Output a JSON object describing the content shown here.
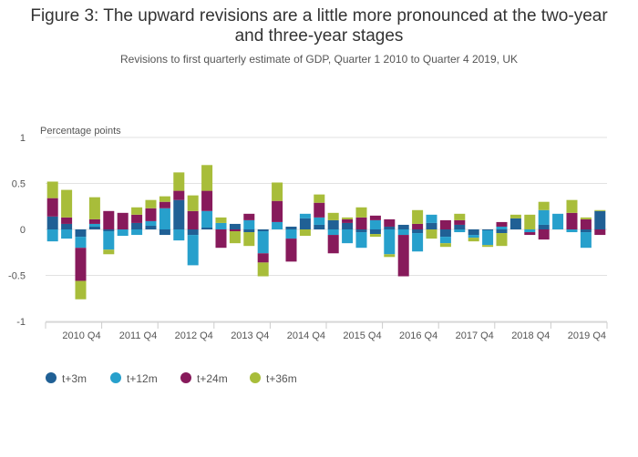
{
  "chart_data": {
    "type": "bar",
    "stacked": true,
    "title_lines": [
      "Figure 3: The upward revisions are a little more pronounced at the two-year",
      "and three-year stages"
    ],
    "subtitle": "Revisions to first quarterly estimate of GDP, Quarter 1 2010 to Quarter 4 2019, UK",
    "ylabel": "Percentage points",
    "ylim": [
      -1,
      1
    ],
    "yticks": [
      "1",
      "0.5",
      "0",
      "-0.5",
      "-1"
    ],
    "ytick_values": [
      1,
      0.5,
      0,
      -0.5,
      -1
    ],
    "categories": [
      "2010 Q1",
      "2010 Q2",
      "2010 Q3",
      "2010 Q4",
      "2011 Q1",
      "2011 Q2",
      "2011 Q3",
      "2011 Q4",
      "2012 Q1",
      "2012 Q2",
      "2012 Q3",
      "2012 Q4",
      "2013 Q1",
      "2013 Q2",
      "2013 Q3",
      "2013 Q4",
      "2014 Q1",
      "2014 Q2",
      "2014 Q3",
      "2014 Q4",
      "2015 Q1",
      "2015 Q2",
      "2015 Q3",
      "2015 Q4",
      "2016 Q1",
      "2016 Q2",
      "2016 Q3",
      "2016 Q4",
      "2017 Q1",
      "2017 Q2",
      "2017 Q3",
      "2017 Q4",
      "2018 Q1",
      "2018 Q2",
      "2018 Q3",
      "2018 Q4",
      "2019 Q1",
      "2019 Q2",
      "2019 Q3",
      "2019 Q4"
    ],
    "xtick_labels": [
      "2010 Q4",
      "2011 Q4",
      "2012 Q4",
      "2013 Q4",
      "2014 Q4",
      "2015 Q4",
      "2016 Q4",
      "2017 Q4",
      "2018 Q4",
      "2019 Q4"
    ],
    "xtick_label_indices": [
      3,
      7,
      11,
      15,
      19,
      23,
      27,
      31,
      35,
      39
    ],
    "legend_position": "bottom-left",
    "grid": true,
    "series": [
      {
        "name": "t+3m",
        "color": "#206095",
        "values": [
          0.14,
          0.06,
          -0.08,
          0.03,
          -0.02,
          0.0,
          0.07,
          0.04,
          -0.06,
          0.32,
          -0.06,
          0.02,
          0.0,
          0.06,
          -0.03,
          -0.02,
          0.0,
          0.03,
          0.12,
          0.05,
          0.1,
          0.07,
          -0.03,
          -0.05,
          0.03,
          0.05,
          -0.04,
          0.07,
          -0.08,
          0.05,
          -0.06,
          -0.01,
          -0.04,
          0.12,
          0.0,
          0.05,
          0.0,
          0.0,
          -0.03,
          0.2
        ]
      },
      {
        "name": "t+12m",
        "color": "#27a0cc",
        "values": [
          -0.13,
          -0.1,
          -0.12,
          0.03,
          -0.2,
          -0.07,
          -0.06,
          0.05,
          0.23,
          -0.12,
          -0.33,
          0.18,
          0.07,
          0.0,
          0.1,
          -0.24,
          0.08,
          -0.1,
          0.05,
          0.08,
          -0.06,
          -0.15,
          -0.17,
          0.1,
          -0.27,
          -0.06,
          -0.2,
          0.09,
          -0.07,
          -0.03,
          -0.03,
          -0.16,
          0.03,
          0.0,
          -0.03,
          0.16,
          0.17,
          -0.03,
          -0.17,
          0.0
        ]
      },
      {
        "name": "t+24m",
        "color": "#871a5b",
        "values": [
          0.2,
          0.07,
          -0.36,
          0.05,
          0.2,
          0.18,
          0.09,
          0.14,
          0.07,
          0.1,
          0.2,
          0.22,
          -0.2,
          -0.02,
          0.07,
          -0.1,
          0.23,
          -0.25,
          0.0,
          0.16,
          -0.2,
          0.04,
          0.13,
          0.05,
          0.08,
          -0.45,
          0.06,
          0.0,
          0.1,
          0.05,
          0.0,
          0.0,
          0.05,
          0.0,
          -0.03,
          -0.11,
          0.0,
          0.18,
          0.11,
          -0.06
        ]
      },
      {
        "name": "t+36m",
        "color": "#a8bd3a",
        "values": [
          0.18,
          0.3,
          -0.2,
          0.24,
          -0.05,
          0.0,
          0.08,
          0.09,
          0.06,
          0.2,
          0.17,
          0.28,
          0.06,
          -0.13,
          -0.15,
          -0.15,
          0.2,
          0.0,
          -0.07,
          0.09,
          0.08,
          0.02,
          0.11,
          -0.03,
          -0.03,
          0.0,
          0.15,
          -0.1,
          -0.04,
          0.07,
          -0.04,
          -0.02,
          -0.14,
          0.04,
          0.16,
          0.09,
          0.0,
          0.14,
          0.02,
          0.01
        ]
      }
    ]
  }
}
